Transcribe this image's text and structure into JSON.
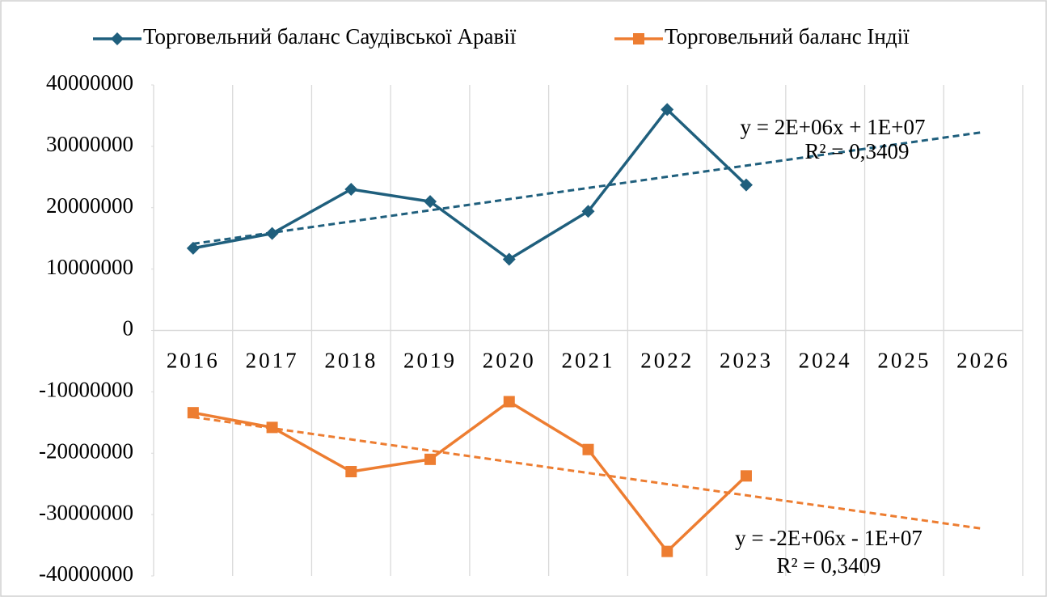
{
  "chart_data": {
    "type": "line",
    "categories": [
      "2016",
      "2017",
      "2018",
      "2019",
      "2020",
      "2021",
      "2022",
      "2023",
      "2024",
      "2025",
      "2026"
    ],
    "series": [
      {
        "name": "Торговельний баланс Саудівської Аравії",
        "color": "#1f5f7d",
        "marker": "diamond",
        "trendline": "linear",
        "values": [
          13400000,
          15800000,
          23000000,
          21000000,
          11600000,
          19400000,
          36000000,
          23700000,
          null,
          null,
          null
        ]
      },
      {
        "name": "Торговельний баланс Індії",
        "color": "#ed7d31",
        "marker": "square",
        "trendline": "linear",
        "values": [
          -13400000,
          -15800000,
          -23000000,
          -21000000,
          -11600000,
          -19400000,
          -36000000,
          -23700000,
          null,
          null,
          null
        ]
      }
    ],
    "annotations": [
      {
        "series": 0,
        "lines": [
          "y = 2E+06x + 1E+07",
          "R² = 0,3409"
        ]
      },
      {
        "series": 1,
        "lines": [
          "y = -2E+06x - 1E+07",
          "R² = 0,3409"
        ]
      }
    ],
    "ylim": [
      -40000000,
      40000000
    ],
    "yticks": [
      40000000,
      30000000,
      20000000,
      10000000,
      0,
      -10000000,
      -20000000,
      -30000000,
      -40000000
    ],
    "grid": "vertical",
    "legend": "top"
  }
}
